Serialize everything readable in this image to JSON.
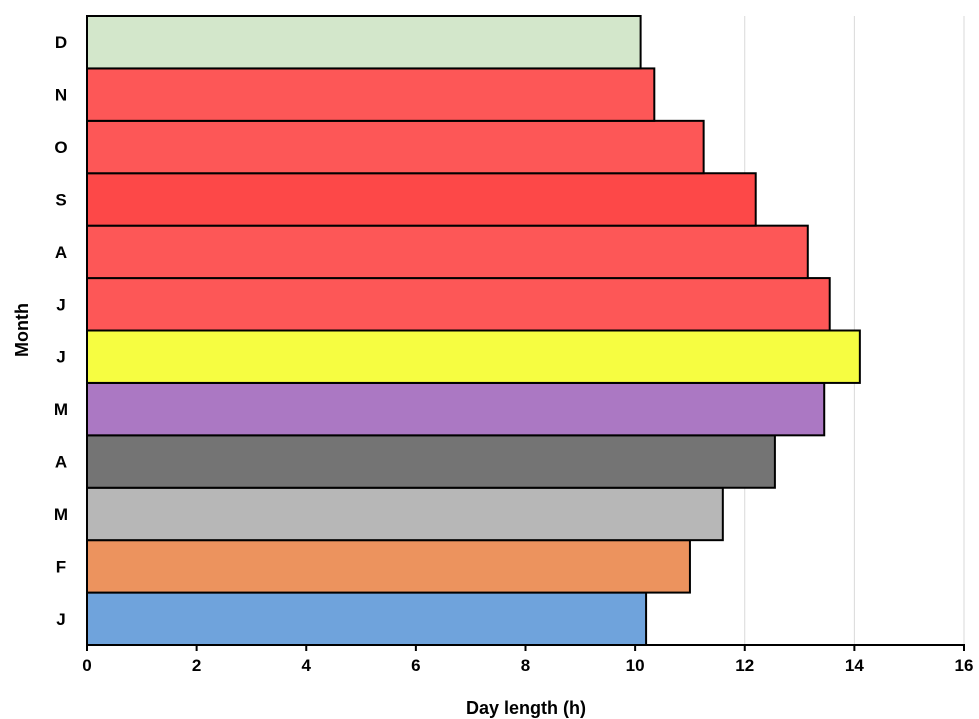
{
  "chart_data": {
    "type": "bar",
    "orientation": "horizontal",
    "categories": [
      "J",
      "F",
      "M",
      "A",
      "M",
      "J",
      "J",
      "A",
      "S",
      "O",
      "N",
      "D"
    ],
    "values": [
      10.2,
      11.0,
      11.6,
      12.55,
      13.45,
      14.1,
      13.55,
      13.15,
      12.2,
      11.25,
      10.35,
      10.1
    ],
    "colors": [
      "#6fa3dc",
      "#ec935e",
      "#b7b7b7",
      "#747474",
      "#ab78c3",
      "#f6fd41",
      "#fd5757",
      "#fd5757",
      "#fd4848",
      "#fd5757",
      "#fd5757",
      "#d3e7cb"
    ],
    "xlabel": "Day length (h)",
    "ylabel": "Month",
    "xlim": [
      0,
      16
    ],
    "xticks": [
      "0",
      "2",
      "4",
      "6",
      "8",
      "10",
      "12",
      "14",
      "16"
    ],
    "grid": "vertical"
  }
}
